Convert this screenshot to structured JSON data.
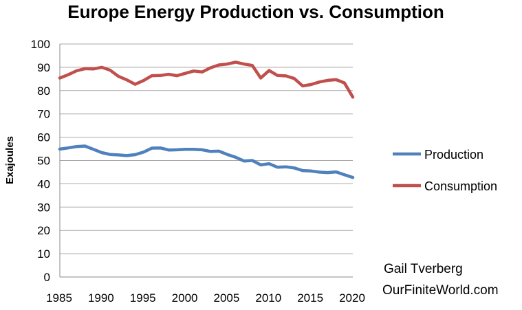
{
  "chart_data": {
    "type": "line",
    "title": "Europe Energy Production vs. Consumption",
    "xlabel": "",
    "ylabel": "Exajoules",
    "xlim": [
      1985,
      2020
    ],
    "ylim": [
      0,
      100
    ],
    "yticks": [
      0,
      10,
      20,
      30,
      40,
      50,
      60,
      70,
      80,
      90,
      100
    ],
    "xticks": [
      1985,
      1990,
      1995,
      2000,
      2005,
      2010,
      2015,
      2020
    ],
    "grid": true,
    "legend_position": "right",
    "x": [
      1985,
      1986,
      1987,
      1988,
      1989,
      1990,
      1991,
      1992,
      1993,
      1994,
      1995,
      1996,
      1997,
      1998,
      1999,
      2000,
      2001,
      2002,
      2003,
      2004,
      2005,
      2006,
      2007,
      2008,
      2009,
      2010,
      2011,
      2012,
      2013,
      2014,
      2015,
      2016,
      2017,
      2018,
      2019,
      2020
    ],
    "series": [
      {
        "name": "Production",
        "color": "#4f81bd",
        "values": [
          54.9,
          55.4,
          56.0,
          56.2,
          54.8,
          53.4,
          52.6,
          52.4,
          52.1,
          52.5,
          53.6,
          55.3,
          55.4,
          54.5,
          54.6,
          54.8,
          54.8,
          54.6,
          53.9,
          54.0,
          52.6,
          51.4,
          49.8,
          50.0,
          48.1,
          48.6,
          47.1,
          47.3,
          46.8,
          45.7,
          45.5,
          45.0,
          44.8,
          45.1,
          43.9,
          42.7
        ]
      },
      {
        "name": "Consumption",
        "color": "#c0504d",
        "values": [
          85.4,
          86.8,
          88.5,
          89.4,
          89.3,
          90.0,
          88.8,
          86.1,
          84.6,
          82.7,
          84.3,
          86.4,
          86.5,
          87.0,
          86.4,
          87.4,
          88.4,
          88.0,
          89.8,
          91.0,
          91.4,
          92.2,
          91.4,
          90.8,
          85.4,
          88.6,
          86.5,
          86.3,
          85.2,
          82.0,
          82.6,
          83.7,
          84.4,
          84.7,
          83.3,
          77.2
        ]
      }
    ]
  },
  "credit": {
    "line1": "Gail Tverberg",
    "line2": "OurFiniteWorld.com"
  }
}
